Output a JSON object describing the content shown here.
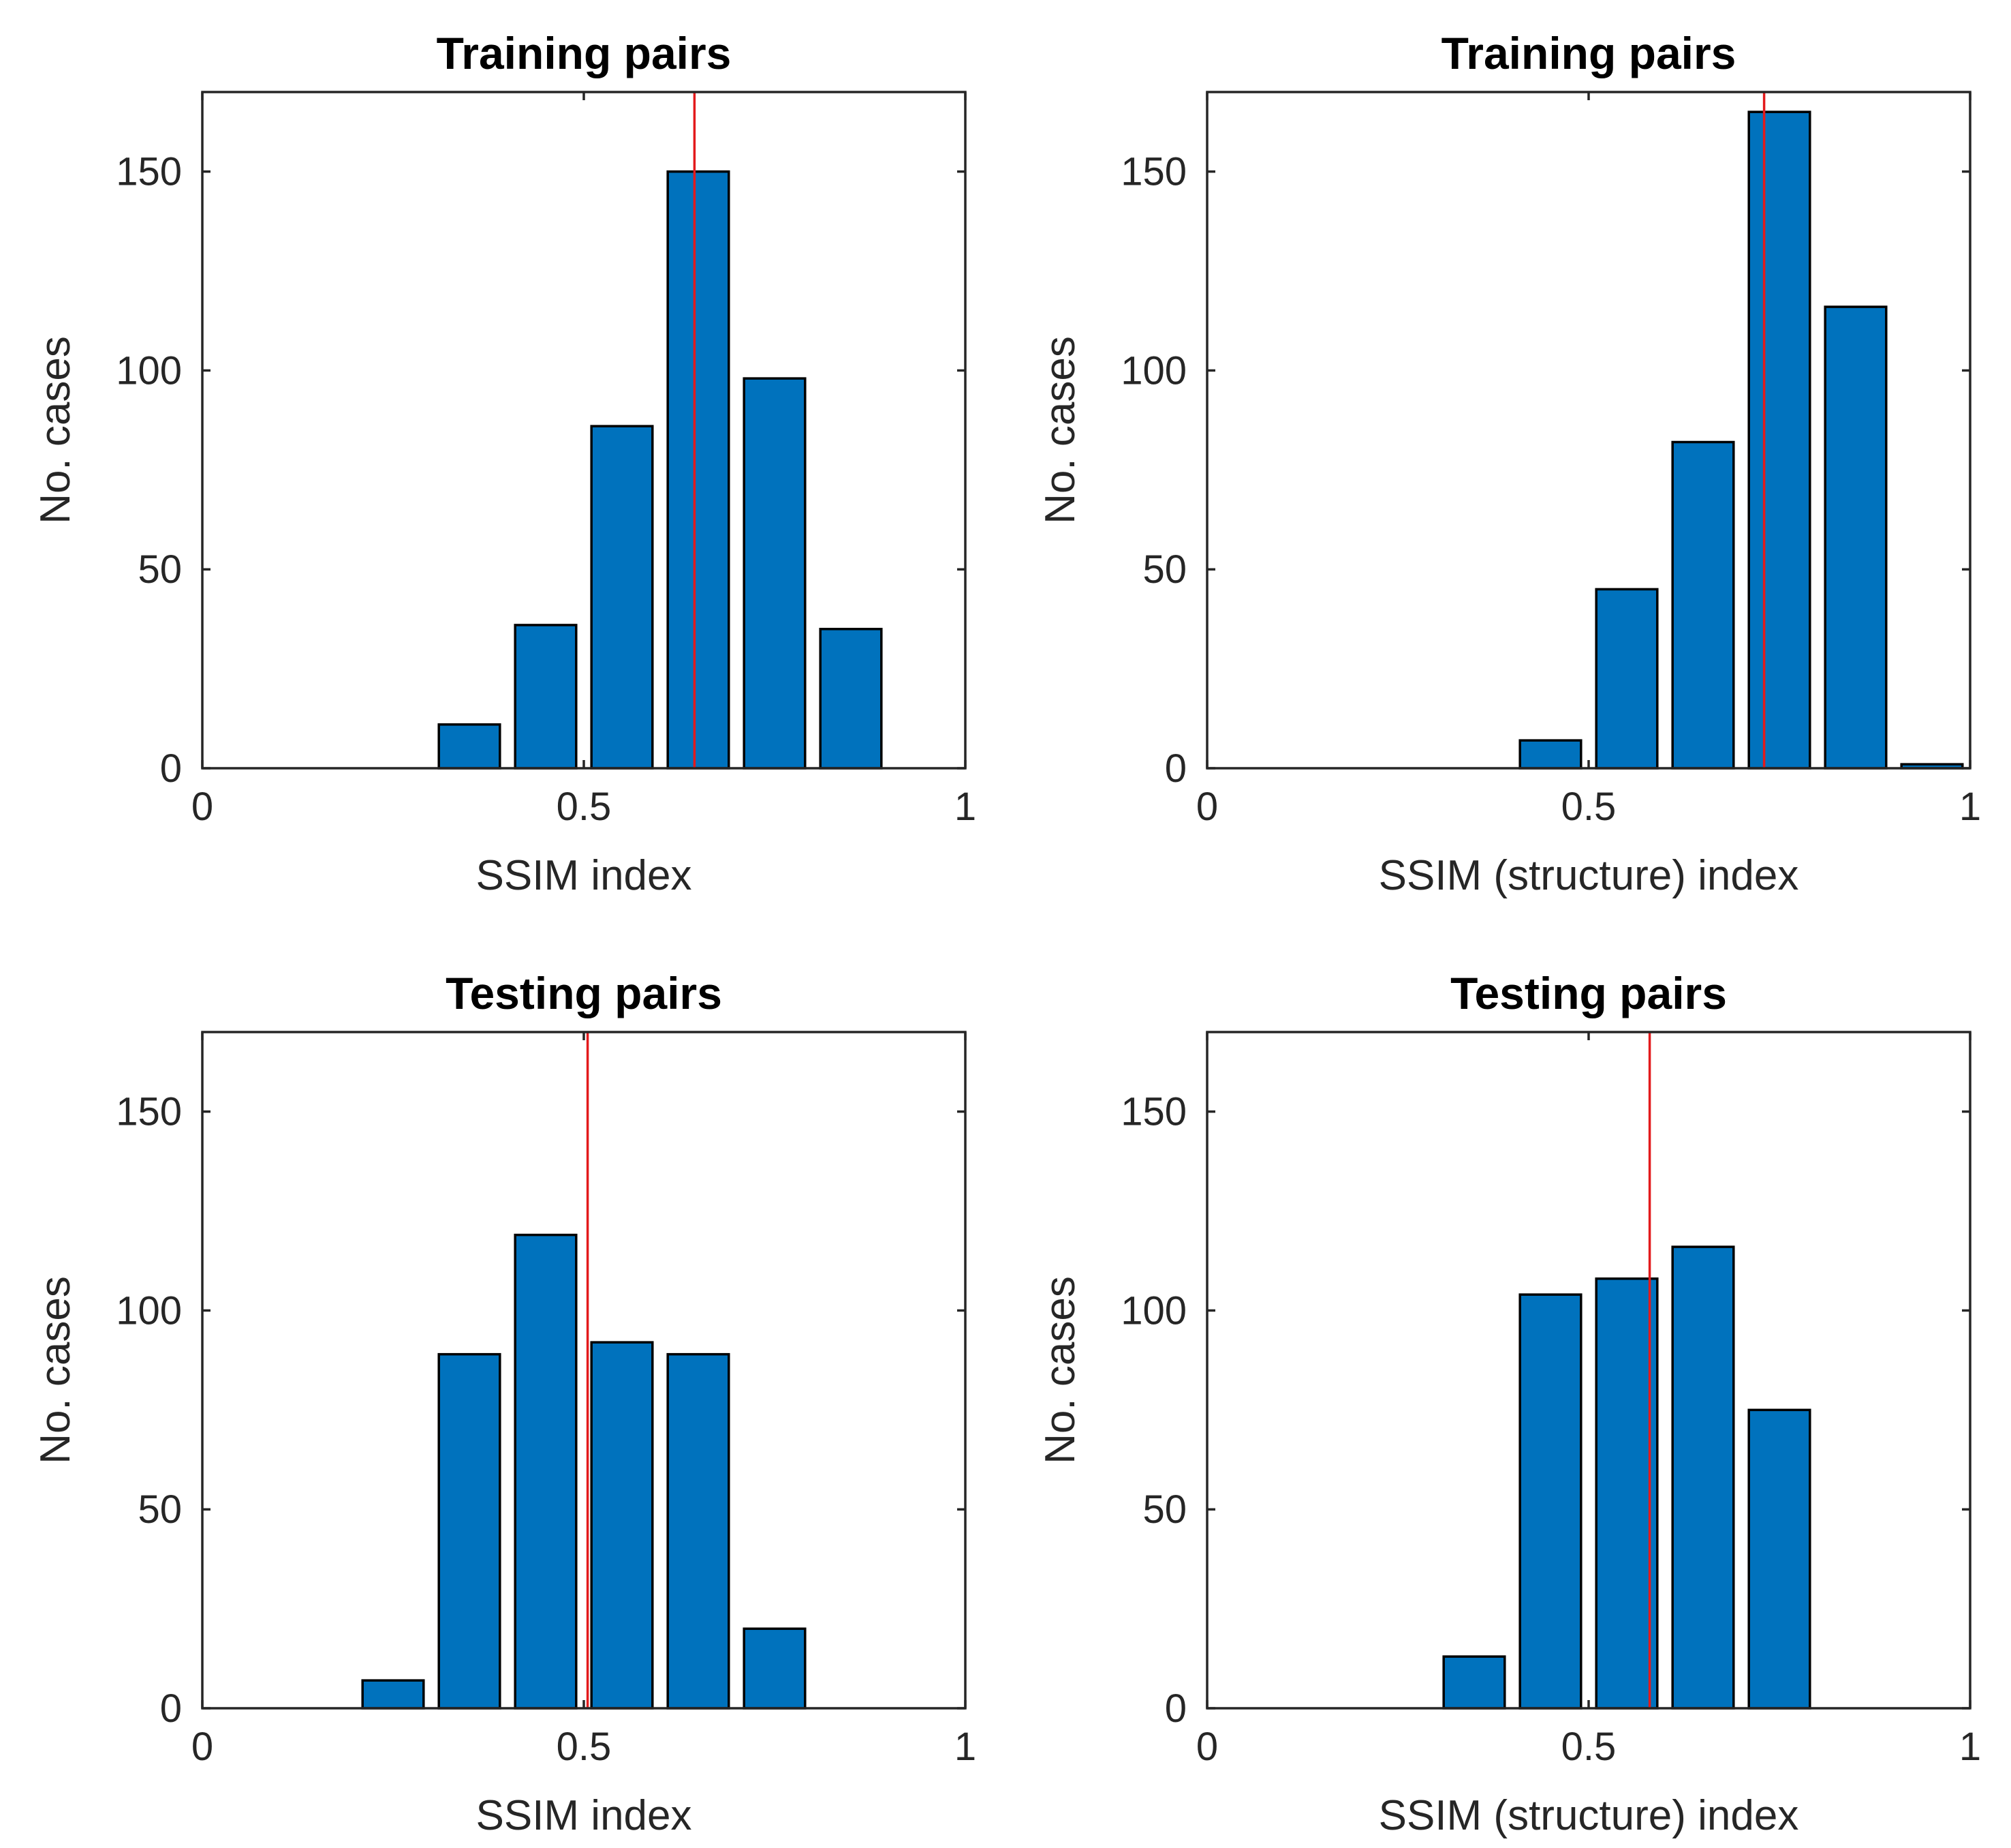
{
  "colors": {
    "bar": "#0072BD",
    "reference_line": "#E31A1C",
    "axis": "#262626"
  },
  "chart_data": [
    {
      "type": "bar",
      "title": "Training pairs",
      "xlabel": "SSIM index",
      "ylabel": "No. cases",
      "xlim": [
        0,
        1
      ],
      "ylim": [
        0,
        170
      ],
      "xticks": [
        0,
        0.5,
        1
      ],
      "xtick_labels": [
        "0",
        "0.5",
        "1"
      ],
      "yticks": [
        0,
        50,
        100,
        150
      ],
      "ytick_labels": [
        "0",
        "50",
        "100",
        "150"
      ],
      "bin_width": 0.1,
      "bin_centers": [
        0.05,
        0.15,
        0.25,
        0.35,
        0.45,
        0.55,
        0.65,
        0.75,
        0.85,
        0.95
      ],
      "values": [
        0,
        0,
        0,
        11,
        36,
        86,
        150,
        98,
        35,
        0
      ],
      "reference_line_x": 0.645
    },
    {
      "type": "bar",
      "title": "Training pairs",
      "xlabel": "SSIM (structure) index",
      "ylabel": "No. cases",
      "xlim": [
        0,
        1
      ],
      "ylim": [
        0,
        170
      ],
      "xticks": [
        0,
        0.5,
        1
      ],
      "xtick_labels": [
        "0",
        "0.5",
        "1"
      ],
      "yticks": [
        0,
        50,
        100,
        150
      ],
      "ytick_labels": [
        "0",
        "50",
        "100",
        "150"
      ],
      "bin_width": 0.1,
      "bin_centers": [
        0.05,
        0.15,
        0.25,
        0.35,
        0.45,
        0.55,
        0.65,
        0.75,
        0.85,
        0.95
      ],
      "values": [
        0,
        0,
        0,
        0,
        7,
        45,
        82,
        165,
        116,
        1
      ],
      "reference_line_x": 0.73
    },
    {
      "type": "bar",
      "title": "Testing pairs",
      "xlabel": "SSIM index",
      "ylabel": "No. cases",
      "xlim": [
        0,
        1
      ],
      "ylim": [
        0,
        170
      ],
      "xticks": [
        0,
        0.5,
        1
      ],
      "xtick_labels": [
        "0",
        "0.5",
        "1"
      ],
      "yticks": [
        0,
        50,
        100,
        150
      ],
      "ytick_labels": [
        "0",
        "50",
        "100",
        "150"
      ],
      "bin_width": 0.1,
      "bin_centers": [
        0.05,
        0.15,
        0.25,
        0.35,
        0.45,
        0.55,
        0.65,
        0.75,
        0.85,
        0.95
      ],
      "values": [
        0,
        0,
        7,
        89,
        119,
        92,
        89,
        20,
        0,
        0
      ],
      "reference_line_x": 0.505
    },
    {
      "type": "bar",
      "title": "Testing pairs",
      "xlabel": "SSIM (structure) index",
      "ylabel": "No. cases",
      "xlim": [
        0,
        1
      ],
      "ylim": [
        0,
        170
      ],
      "xticks": [
        0,
        0.5,
        1
      ],
      "xtick_labels": [
        "0",
        "0.5",
        "1"
      ],
      "yticks": [
        0,
        50,
        100,
        150
      ],
      "ytick_labels": [
        "0",
        "50",
        "100",
        "150"
      ],
      "bin_width": 0.1,
      "bin_centers": [
        0.05,
        0.15,
        0.25,
        0.35,
        0.45,
        0.55,
        0.65,
        0.75,
        0.85,
        0.95
      ],
      "values": [
        0,
        0,
        0,
        13,
        104,
        108,
        116,
        75,
        0,
        0
      ],
      "reference_line_x": 0.58
    }
  ]
}
